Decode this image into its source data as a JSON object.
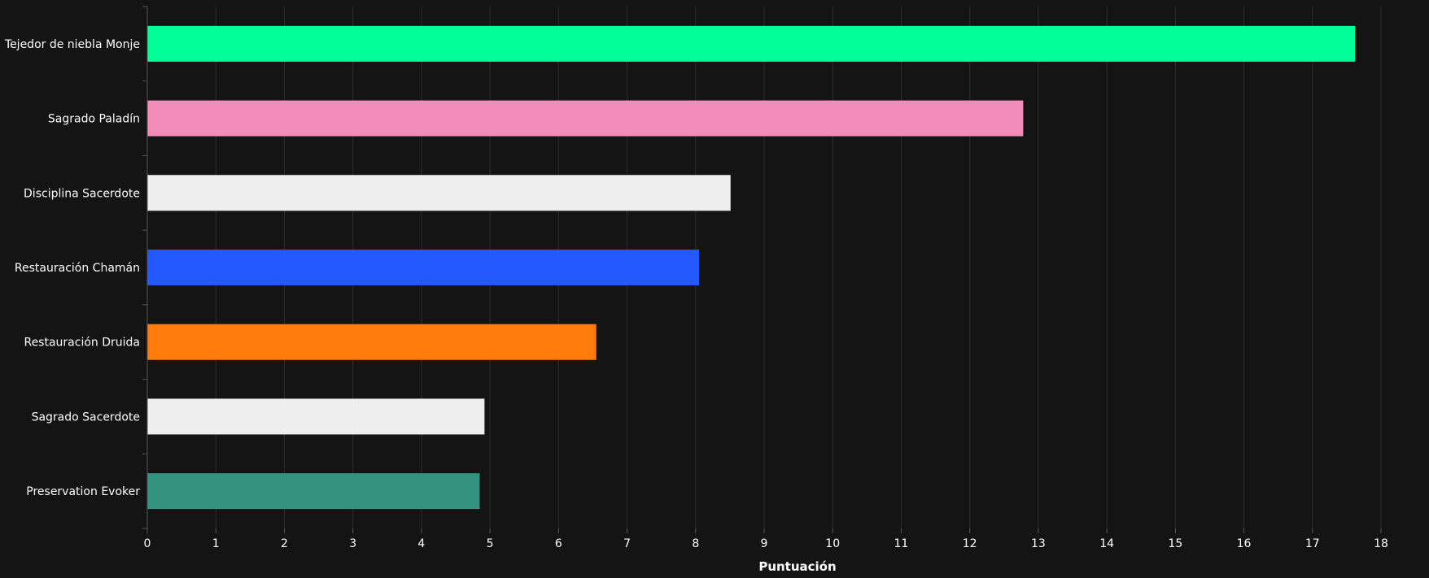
{
  "chart_data": {
    "type": "bar",
    "orientation": "horizontal",
    "categories": [
      "Tejedor de niebla Monje",
      "Sagrado Paladín",
      "Disciplina Sacerdote",
      "Restauración Chamán",
      "Restauración Druida",
      "Sagrado Sacerdote",
      "Preservation Evoker"
    ],
    "values": [
      17.62,
      12.78,
      8.51,
      8.05,
      6.55,
      4.92,
      4.85
    ],
    "colors": [
      "#00FF98",
      "#F48CBA",
      "#EEEEEE",
      "#2459FF",
      "#FF7C0A",
      "#EEEEEE",
      "#33937F"
    ],
    "xlabel": "Puntuación",
    "ylabel": "",
    "xlim": [
      0,
      18
    ],
    "xticks": [
      "0",
      "1",
      "2",
      "3",
      "4",
      "5",
      "6",
      "7",
      "8",
      "9",
      "10",
      "11",
      "12",
      "13",
      "14",
      "15",
      "16",
      "17",
      "18"
    ],
    "grid": "vertical",
    "background": "#141414"
  }
}
